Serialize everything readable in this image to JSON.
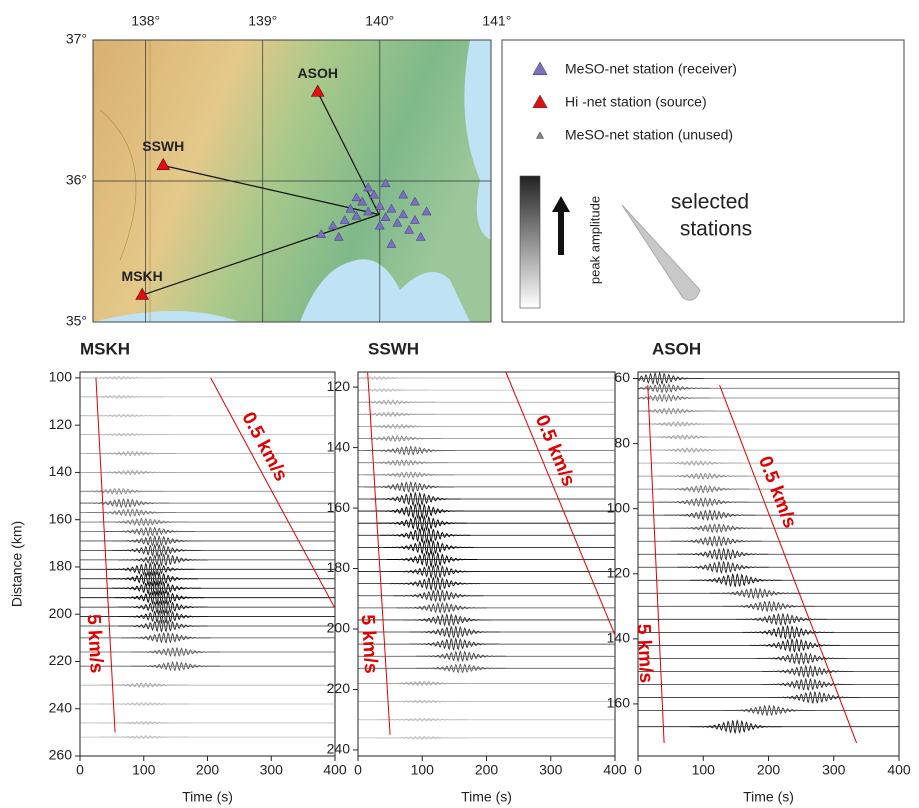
{
  "map": {
    "xlim": [
      137.55,
      140.95
    ],
    "ylim": [
      35,
      37
    ],
    "xticks": [
      {
        "value": 138,
        "label": "138°"
      },
      {
        "value": 139,
        "label": "139°"
      },
      {
        "value": 140,
        "label": "140°"
      },
      {
        "value": 141,
        "label": "141°"
      }
    ],
    "yticks": [
      {
        "value": 35,
        "label": "35°"
      },
      {
        "value": 36,
        "label": "36°"
      },
      {
        "value": 37,
        "label": "37°"
      }
    ],
    "stations": [
      {
        "name": "ASOH",
        "lon": 139.47,
        "lat": 36.63
      },
      {
        "name": "SSWH",
        "lon": 138.15,
        "lat": 36.11
      },
      {
        "name": "MSKH",
        "lon": 137.97,
        "lat": 35.19
      }
    ],
    "receivers": {
      "lon": [
        139.5,
        139.6,
        139.7,
        139.75,
        139.8,
        139.85,
        139.9,
        139.95,
        140.0,
        140.05,
        140.1,
        140.15,
        140.2,
        140.25,
        140.3,
        140.35,
        140.4,
        139.65,
        139.9,
        140.0,
        140.1,
        140.2,
        139.8,
        140.05,
        140.3
      ],
      "lat": [
        35.62,
        35.68,
        35.72,
        35.8,
        35.75,
        35.85,
        35.78,
        35.9,
        35.82,
        35.74,
        35.8,
        35.7,
        35.76,
        35.65,
        35.72,
        35.6,
        35.78,
        35.6,
        35.95,
        35.68,
        35.55,
        35.9,
        35.88,
        35.98,
        35.85
      ]
    }
  },
  "legend": {
    "items": [
      "MeSO-net station (receiver)",
      "Hi -net station (source)",
      "MeSO-net station (unused)"
    ],
    "colorbar_label": "peak amplitude",
    "wedge_label": [
      "selected",
      "stations"
    ]
  },
  "chart_data": [
    {
      "type": "record-section",
      "title": "MSKH",
      "xlabel": "Time (s)",
      "ylabel": "Distance (km)",
      "xlim": [
        0,
        400
      ],
      "xticks": [
        0,
        100,
        200,
        300,
        400
      ],
      "ylim": [
        97.5,
        260
      ],
      "y_inverted": true,
      "yticks": [
        100,
        120,
        140,
        160,
        180,
        200,
        220,
        240,
        260
      ],
      "guide_color": "#e00000",
      "guides": [
        {
          "label": "0.5 km/s",
          "x": [
            205,
            400
          ],
          "y": [
            100,
            197.5
          ]
        },
        {
          "label": "5 km/s",
          "x": [
            25,
            55
          ],
          "y": [
            100,
            250
          ]
        }
      ],
      "traces": {
        "distance": [
          100,
          108,
          116,
          124,
          132,
          140,
          148,
          153,
          157,
          161,
          165,
          169,
          173,
          177,
          181,
          185,
          189,
          193,
          197,
          201,
          205,
          210,
          216,
          222,
          230,
          238,
          246,
          252
        ],
        "peak_time": [
          60,
          60,
          70,
          70,
          80,
          80,
          60,
          70,
          80,
          100,
          110,
          120,
          120,
          130,
          110,
          115,
          120,
          125,
          130,
          130,
          130,
          135,
          150,
          150,
          100,
          100,
          100,
          100
        ],
        "amplitude": [
          0.2,
          0.2,
          0.2,
          0.2,
          0.3,
          0.3,
          0.4,
          0.6,
          0.5,
          0.5,
          0.6,
          0.7,
          0.8,
          0.8,
          0.9,
          1,
          1,
          1,
          0.9,
          0.9,
          0.8,
          0.7,
          0.6,
          0.6,
          0.3,
          0.2,
          0.2,
          0.2
        ]
      }
    },
    {
      "type": "record-section",
      "title": "SSWH",
      "xlabel": "Time (s)",
      "xlim": [
        0,
        400
      ],
      "xticks": [
        0,
        100,
        200,
        300,
        400
      ],
      "ylim": [
        115,
        242
      ],
      "y_inverted": true,
      "yticks": [
        120,
        140,
        160,
        180,
        200,
        220,
        240
      ],
      "guide_color": "#e00000",
      "guides": [
        {
          "label": "0.5 km/s",
          "x": [
            230,
            400
          ],
          "y": [
            115,
            202
          ]
        },
        {
          "label": "5 km/s",
          "x": [
            15,
            50
          ],
          "y": [
            115,
            235
          ]
        }
      ],
      "traces": {
        "distance": [
          117,
          121,
          125,
          129,
          133,
          137,
          141,
          145,
          149,
          153,
          157,
          161,
          165,
          169,
          173,
          177,
          181,
          185,
          189,
          193,
          197,
          201,
          205,
          209,
          213,
          218,
          224,
          230,
          236
        ],
        "peak_time": [
          30,
          40,
          50,
          50,
          60,
          60,
          80,
          70,
          80,
          80,
          90,
          95,
          100,
          105,
          110,
          115,
          120,
          120,
          125,
          130,
          140,
          150,
          150,
          160,
          160,
          100,
          100,
          100,
          100
        ],
        "amplitude": [
          0.2,
          0.2,
          0.3,
          0.3,
          0.3,
          0.4,
          0.6,
          0.4,
          0.4,
          0.7,
          0.9,
          1,
          1,
          1,
          1,
          1,
          0.9,
          0.9,
          0.8,
          0.7,
          0.8,
          0.8,
          0.8,
          0.7,
          0.6,
          0.3,
          0.2,
          0.2,
          0.2
        ]
      }
    },
    {
      "type": "record-section",
      "title": "ASOH",
      "xlabel": "Time (s)",
      "xlim": [
        0,
        400
      ],
      "xticks": [
        0,
        100,
        200,
        300,
        400
      ],
      "ylim": [
        58,
        176
      ],
      "y_inverted": true,
      "yticks": [
        60,
        80,
        100,
        120,
        140,
        160
      ],
      "guide_color": "#e00000",
      "guides": [
        {
          "label": "0.5 km/s",
          "x": [
            125,
            335
          ],
          "y": [
            62,
            172
          ]
        },
        {
          "label": "5 km/s",
          "x": [
            15,
            40
          ],
          "y": [
            62,
            172
          ]
        }
      ],
      "traces": {
        "distance": [
          60,
          63,
          66,
          70,
          74,
          78,
          82,
          86,
          90,
          94,
          98,
          102,
          106,
          110,
          114,
          118,
          122,
          126,
          130,
          134,
          138,
          142,
          146,
          150,
          154,
          158,
          162,
          167
        ],
        "peak_time": [
          30,
          40,
          40,
          50,
          60,
          70,
          80,
          90,
          100,
          100,
          100,
          110,
          120,
          120,
          130,
          130,
          150,
          180,
          200,
          220,
          230,
          240,
          250,
          260,
          260,
          270,
          200,
          150
        ],
        "amplitude": [
          0.8,
          0.6,
          0.5,
          0.4,
          0.3,
          0.3,
          0.3,
          0.3,
          0.4,
          0.5,
          0.6,
          0.7,
          0.6,
          0.7,
          0.8,
          0.8,
          0.9,
          0.7,
          0.7,
          0.8,
          0.9,
          0.9,
          0.8,
          0.8,
          0.8,
          0.8,
          0.7,
          0.9
        ]
      }
    }
  ]
}
